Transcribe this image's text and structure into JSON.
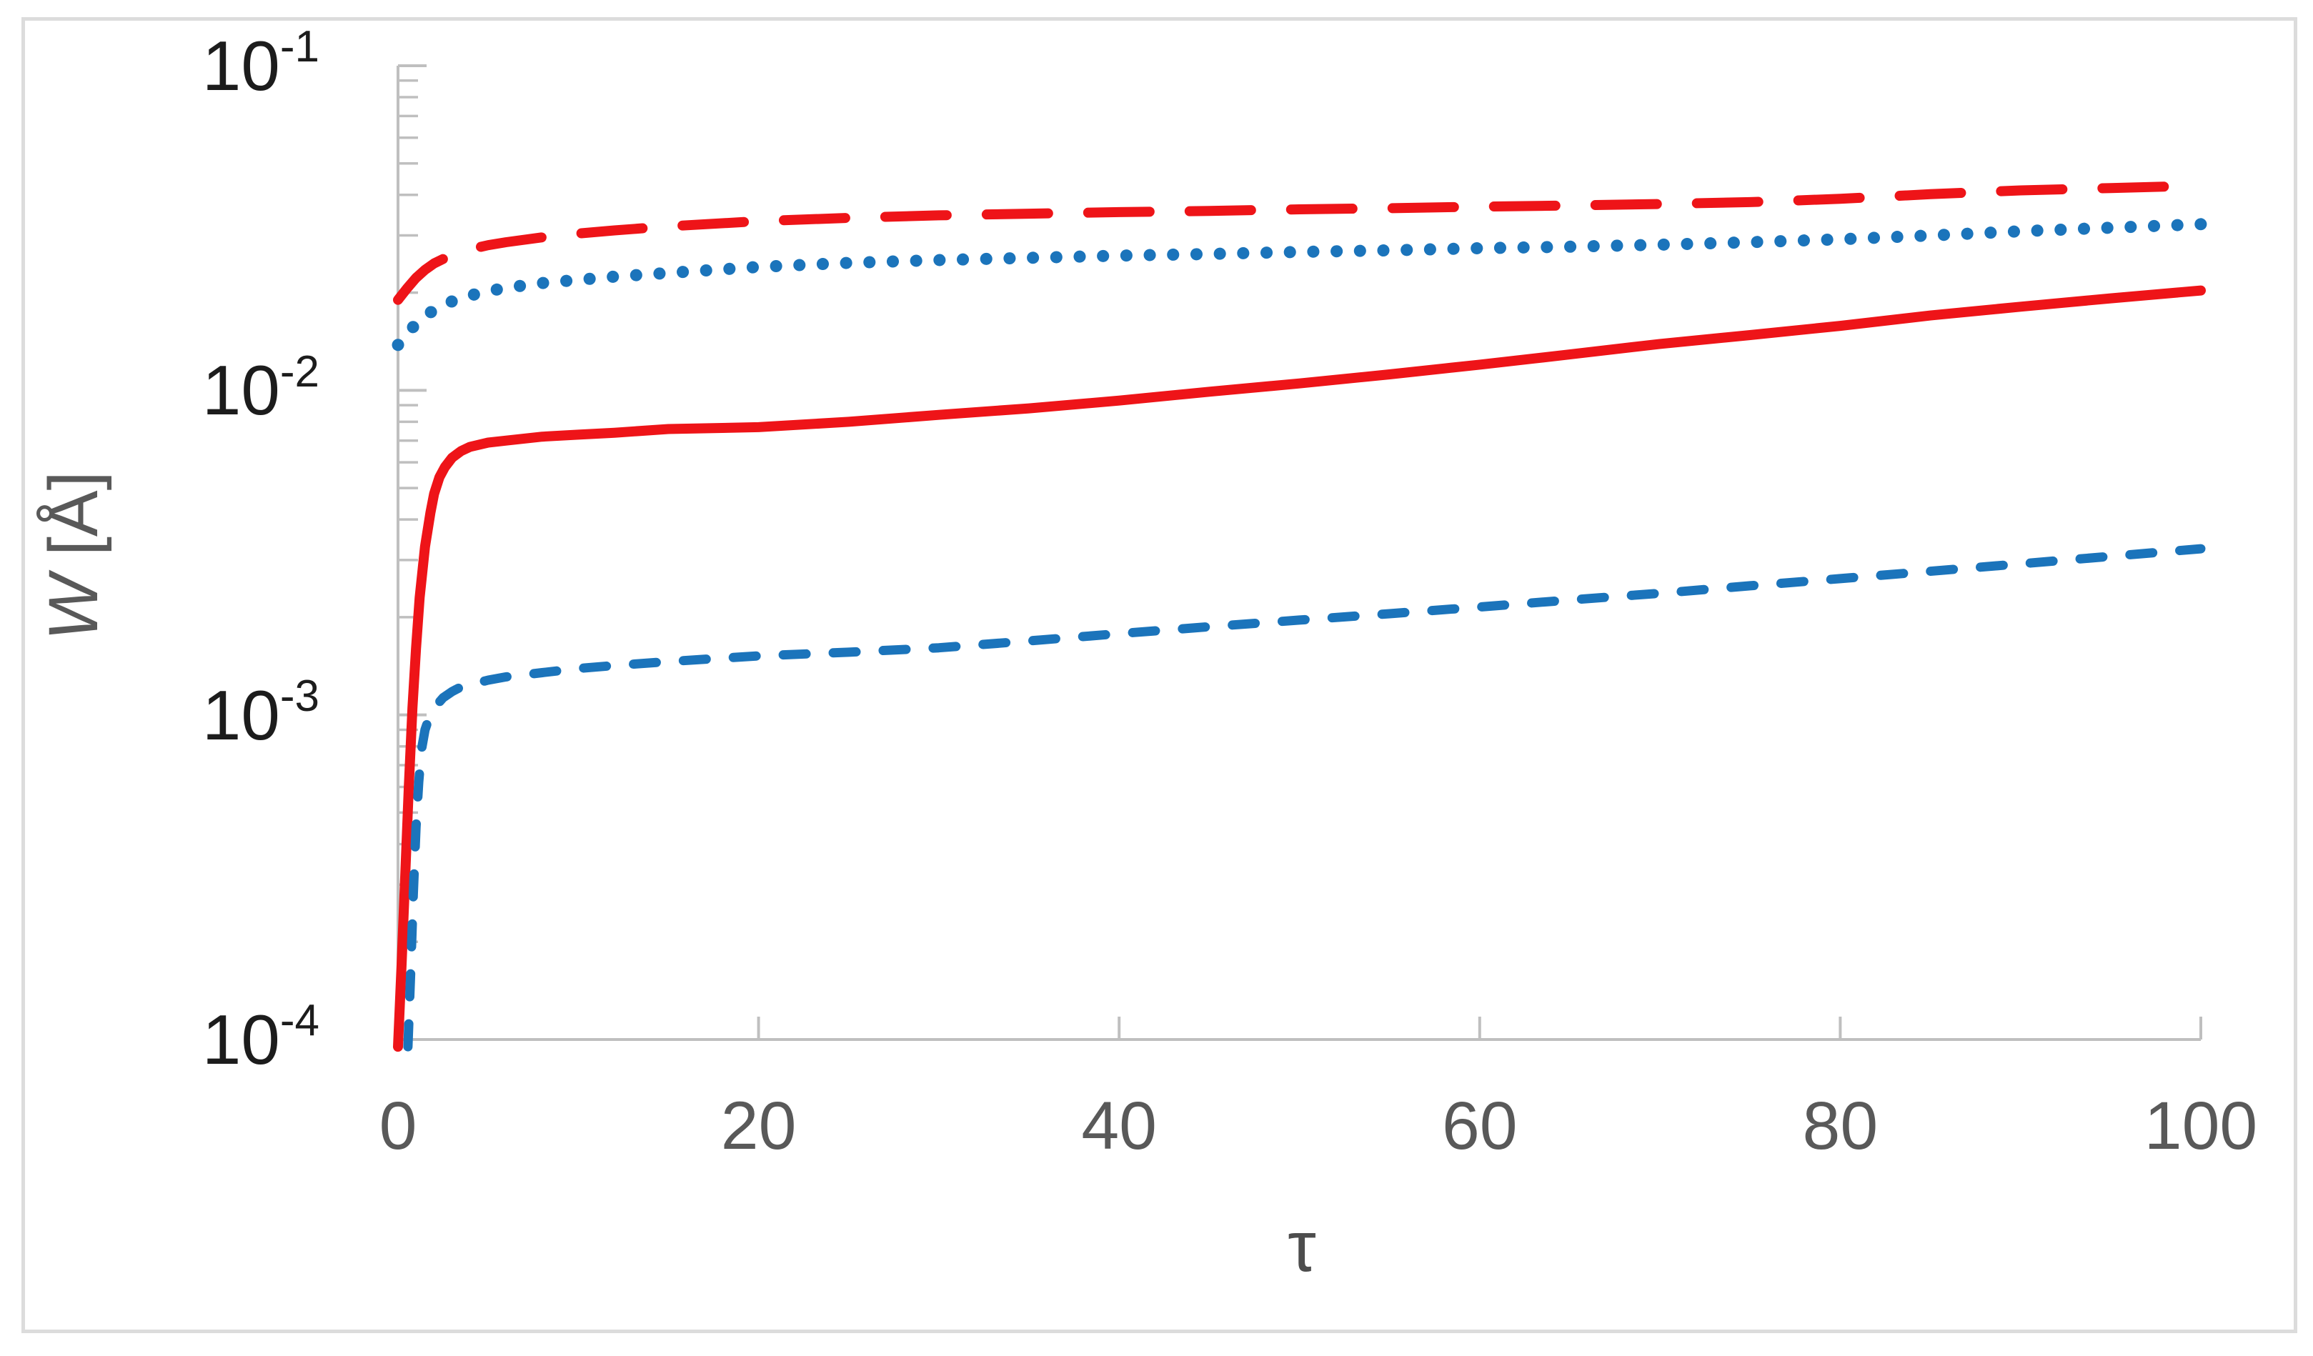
{
  "chart_data": {
    "type": "line",
    "title": "",
    "xlabel": "τ",
    "ylabel": "W [Å]",
    "ylabel_var": "W",
    "ylabel_unit": " [Å]",
    "legend": "none",
    "grid": "off",
    "axis_color": "#bfbfbf",
    "x_axis": {
      "min": 0,
      "max": 100,
      "scale": "linear",
      "ticks": [
        0,
        20,
        40,
        60,
        80,
        100
      ],
      "tick_labels": [
        "0",
        "20",
        "40",
        "60",
        "80",
        "100"
      ]
    },
    "y_axis": {
      "min": 0.0001,
      "max": 0.1,
      "scale": "log",
      "ticks": [
        {
          "base": "10",
          "exp": "-1",
          "value": 0.1
        },
        {
          "base": "10",
          "exp": "-2",
          "value": 0.01
        },
        {
          "base": "10",
          "exp": "-3",
          "value": 0.001
        },
        {
          "base": "10",
          "exp": "-4",
          "value": 0.0001
        }
      ],
      "minor_ticks_per_decade": [
        2,
        3,
        4,
        5,
        6,
        7,
        8,
        9
      ]
    },
    "series": [
      {
        "name": "red-long-dashed",
        "color": "#ee1418",
        "style": "long-dash",
        "points": [
          [
            0,
            0.019
          ],
          [
            0.5,
            0.0206
          ],
          [
            1,
            0.0222
          ],
          [
            1.5,
            0.0235
          ],
          [
            2,
            0.0246
          ],
          [
            3,
            0.0262
          ],
          [
            4,
            0.0272
          ],
          [
            5,
            0.028
          ],
          [
            6,
            0.0286
          ],
          [
            8,
            0.0296
          ],
          [
            10,
            0.0304
          ],
          [
            12,
            0.0311
          ],
          [
            15,
            0.032
          ],
          [
            20,
            0.0332
          ],
          [
            25,
            0.034
          ],
          [
            30,
            0.0346
          ],
          [
            35,
            0.035
          ],
          [
            40,
            0.0354
          ],
          [
            45,
            0.0357
          ],
          [
            50,
            0.0361
          ],
          [
            55,
            0.0364
          ],
          [
            60,
            0.0368
          ],
          [
            65,
            0.0371
          ],
          [
            70,
            0.0375
          ],
          [
            75,
            0.038
          ],
          [
            80,
            0.0389
          ],
          [
            85,
            0.0402
          ],
          [
            90,
            0.0413
          ],
          [
            95,
            0.042
          ],
          [
            100,
            0.0427
          ]
        ]
      },
      {
        "name": "blue-dotted",
        "color": "#1b74bb",
        "style": "dotted",
        "points": [
          [
            0,
            0.0138
          ],
          [
            0.5,
            0.015
          ],
          [
            1,
            0.016
          ],
          [
            1.5,
            0.0169
          ],
          [
            2,
            0.0177
          ],
          [
            2.5,
            0.0183
          ],
          [
            3,
            0.0188
          ],
          [
            4,
            0.0196
          ],
          [
            5,
            0.0202
          ],
          [
            6,
            0.0207
          ],
          [
            8,
            0.0214
          ],
          [
            10,
            0.0219
          ],
          [
            12,
            0.0224
          ],
          [
            15,
            0.023
          ],
          [
            20,
            0.024
          ],
          [
            25,
            0.0247
          ],
          [
            30,
            0.0252
          ],
          [
            35,
            0.0256
          ],
          [
            40,
            0.026
          ],
          [
            45,
            0.0263
          ],
          [
            50,
            0.0267
          ],
          [
            55,
            0.027
          ],
          [
            60,
            0.0274
          ],
          [
            65,
            0.0277
          ],
          [
            70,
            0.0281
          ],
          [
            75,
            0.0286
          ],
          [
            80,
            0.0292
          ],
          [
            85,
            0.03
          ],
          [
            90,
            0.0309
          ],
          [
            95,
            0.0317
          ],
          [
            100,
            0.0325
          ]
        ]
      },
      {
        "name": "red-solid",
        "color": "#ee1418",
        "style": "solid",
        "points": [
          [
            0,
            9.5e-05
          ],
          [
            0.2,
            0.00017
          ],
          [
            0.4,
            0.00032
          ],
          [
            0.6,
            0.0006
          ],
          [
            0.8,
            0.00105
          ],
          [
            1,
            0.0016
          ],
          [
            1.2,
            0.0023
          ],
          [
            1.5,
            0.0033
          ],
          [
            1.8,
            0.0042
          ],
          [
            2,
            0.0048
          ],
          [
            2.3,
            0.0054
          ],
          [
            2.6,
            0.0058
          ],
          [
            3,
            0.0062
          ],
          [
            3.5,
            0.0065
          ],
          [
            4,
            0.0067
          ],
          [
            5,
            0.0069
          ],
          [
            6,
            0.007
          ],
          [
            8,
            0.0072
          ],
          [
            10,
            0.0073
          ],
          [
            12,
            0.0074
          ],
          [
            15,
            0.0076
          ],
          [
            20,
            0.0077
          ],
          [
            25,
            0.008
          ],
          [
            30,
            0.0084
          ],
          [
            35,
            0.0088
          ],
          [
            40,
            0.0093
          ],
          [
            45,
            0.0099
          ],
          [
            50,
            0.0105
          ],
          [
            55,
            0.0112
          ],
          [
            60,
            0.012
          ],
          [
            65,
            0.0129
          ],
          [
            70,
            0.0139
          ],
          [
            75,
            0.0148
          ],
          [
            80,
            0.0158
          ],
          [
            85,
            0.017
          ],
          [
            90,
            0.0181
          ],
          [
            95,
            0.0192
          ],
          [
            100,
            0.0203
          ]
        ]
      },
      {
        "name": "blue-short-dashed",
        "color": "#1b74bb",
        "style": "short-dash",
        "points": [
          [
            0.55,
            9.5e-05
          ],
          [
            0.7,
            0.00016
          ],
          [
            0.85,
            0.00028
          ],
          [
            1,
            0.00045
          ],
          [
            1.15,
            0.00062
          ],
          [
            1.3,
            0.00078
          ],
          [
            1.5,
            0.0009
          ],
          [
            1.75,
            0.00099
          ],
          [
            2,
            0.00105
          ],
          [
            2.5,
            0.00113
          ],
          [
            3,
            0.00118
          ],
          [
            3.5,
            0.00122
          ],
          [
            4,
            0.00124
          ],
          [
            5,
            0.00128
          ],
          [
            6,
            0.00131
          ],
          [
            8,
            0.00135
          ],
          [
            10,
            0.00139
          ],
          [
            12,
            0.00142
          ],
          [
            15,
            0.00146
          ],
          [
            20,
            0.00152
          ],
          [
            25,
            0.00156
          ],
          [
            30,
            0.00161
          ],
          [
            35,
            0.00169
          ],
          [
            40,
            0.00178
          ],
          [
            45,
            0.00187
          ],
          [
            50,
            0.00196
          ],
          [
            55,
            0.00205
          ],
          [
            60,
            0.00215
          ],
          [
            65,
            0.00226
          ],
          [
            70,
            0.00237
          ],
          [
            75,
            0.0025
          ],
          [
            80,
            0.00263
          ],
          [
            85,
            0.00277
          ],
          [
            90,
            0.00292
          ],
          [
            95,
            0.00308
          ],
          [
            100,
            0.00325
          ]
        ]
      }
    ]
  }
}
